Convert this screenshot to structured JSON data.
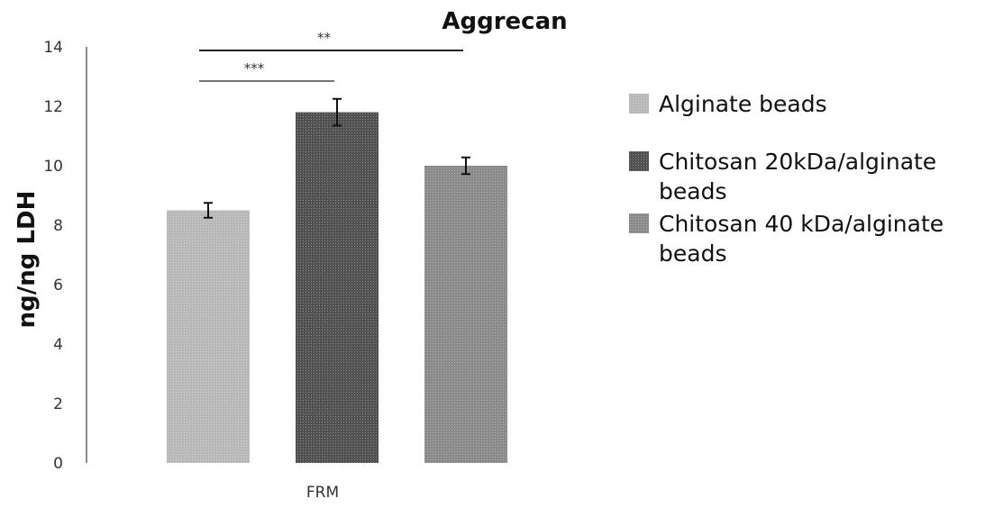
{
  "chart_data": {
    "type": "bar",
    "title": "Aggrecan",
    "ylabel": "ng/ng LDH",
    "xlabel": "",
    "categories": [
      "FRM"
    ],
    "ylim": [
      0,
      14
    ],
    "yticks": [
      0,
      2,
      4,
      6,
      8,
      10,
      12,
      14
    ],
    "grid": false,
    "legend_position": "right",
    "series": [
      {
        "name": "Alginate beads",
        "values": [
          8.5
        ],
        "error": [
          0.25
        ],
        "color": "#b8b8b8"
      },
      {
        "name": "Chitosan 20kDa/alginate beads",
        "values": [
          11.8
        ],
        "error": [
          0.45
        ],
        "color": "#505050"
      },
      {
        "name": "Chitosan 40 kDa/alginate beads",
        "values": [
          10.0
        ],
        "error": [
          0.28
        ],
        "color": "#8a8a8a"
      }
    ],
    "legend_lines": [
      [
        "Alginate beads"
      ],
      [
        "Chitosan 20kDa/alginate",
        "beads"
      ],
      [
        "Chitosan 40 kDa/alginate",
        "beads"
      ]
    ],
    "significance": [
      {
        "label": "**",
        "from_series": 0,
        "to_series": 2,
        "level": 14
      },
      {
        "label": "***",
        "from_series": 0,
        "to_series": 1,
        "level": 13
      }
    ]
  }
}
